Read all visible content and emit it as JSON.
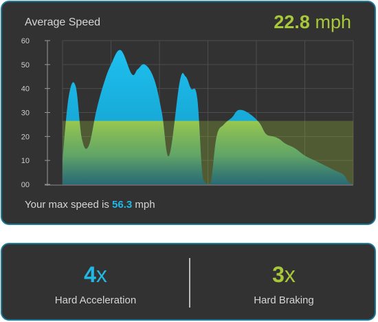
{
  "speed_card": {
    "title": "Average Speed",
    "avg_value": "22.8",
    "avg_unit": "mph",
    "max_prefix": "Your max speed is",
    "max_value": "56.3",
    "max_unit": "mph"
  },
  "stats": {
    "hard_acceleration": {
      "count": "4",
      "suffix": "x",
      "label": "Hard Acceleration"
    },
    "hard_braking": {
      "count": "3",
      "suffix": "x",
      "label": "Hard Braking"
    }
  },
  "colors": {
    "accent_blue": "#22b8e6",
    "accent_green": "#a8c83a",
    "card_bg": "#323232",
    "card_border": "#1a7a9c"
  },
  "chart_data": {
    "type": "area",
    "ylim": [
      0,
      60
    ],
    "yticks": [
      "00",
      "10",
      "20",
      "30",
      "40",
      "50",
      "60"
    ],
    "xlim": [
      0,
      60
    ],
    "x_gridlines": [
      10,
      20,
      30,
      40,
      50
    ],
    "grid": true,
    "series": [
      {
        "x": [
          0,
          1.3,
          2.7,
          4,
          5.4,
          7,
          8.5,
          10,
          12,
          14.3,
          15.5,
          17,
          18.9,
          20.5,
          22,
          24.2,
          25.4,
          26.5,
          27.8,
          29,
          30.5,
          31.8,
          33.3,
          35,
          36.3,
          38.2,
          40.5,
          42,
          43.5,
          44.7,
          46,
          48,
          50,
          52,
          54,
          56,
          58,
          59,
          60
        ],
        "y": [
          10,
          37,
          41,
          19,
          16,
          31,
          42,
          50,
          56,
          46,
          48,
          50,
          44,
          30,
          12,
          43,
          45,
          40,
          36,
          2,
          0,
          20,
          25,
          28,
          31,
          30,
          26,
          21,
          20,
          19,
          17,
          15,
          12,
          10,
          8,
          6,
          4,
          1,
          0
        ]
      }
    ],
    "reference_band": {
      "value": 26.5
    }
  }
}
